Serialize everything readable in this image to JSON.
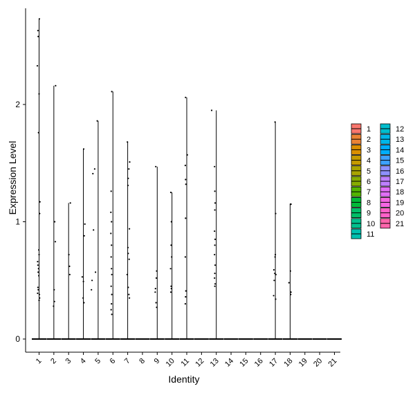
{
  "chart_data": {
    "type": "violin",
    "title": "",
    "xlabel": "Identity",
    "ylabel": "Expression Level",
    "ylim": [
      -0.12,
      2.82
    ],
    "yticks": [
      0,
      1,
      2
    ],
    "legend_position": "right",
    "legend_columns": 2,
    "categories": [
      "1",
      "2",
      "3",
      "4",
      "5",
      "6",
      "7",
      "8",
      "9",
      "10",
      "11",
      "12",
      "13",
      "14",
      "15",
      "16",
      "17",
      "18",
      "19",
      "20",
      "21"
    ],
    "colors": [
      "#F8766D",
      "#EB8335",
      "#DA8F00",
      "#C49A00",
      "#A9A400",
      "#86AC00",
      "#53B400",
      "#00BA38",
      "#00BE67",
      "#00C08D",
      "#00C0AF",
      "#00BDCD",
      "#00B7E8",
      "#00AEFA",
      "#3DA1FF",
      "#8F91FF",
      "#BE80FF",
      "#E06FF6",
      "#F566E3",
      "#FF61C9",
      "#FF65AC"
    ],
    "max_values": [
      2.73,
      2.16,
      1.16,
      1.62,
      1.86,
      2.11,
      1.68,
      0.0,
      1.47,
      1.25,
      2.06,
      0.0,
      1.95,
      0.0,
      0.0,
      0.0,
      1.85,
      1.15,
      0.0,
      0.0,
      0.0
    ],
    "nonzero_points": [
      [
        [
          0.72,
          2.73
        ],
        [
          0.62,
          2.63
        ],
        [
          0.64,
          2.58
        ],
        [
          0.58,
          2.33
        ],
        [
          0.7,
          2.09
        ],
        [
          0.66,
          1.76
        ],
        [
          0.76,
          1.17
        ],
        [
          0.74,
          1.07
        ],
        [
          0.68,
          0.76
        ],
        [
          0.7,
          0.72
        ],
        [
          0.6,
          0.66
        ],
        [
          0.62,
          0.63
        ],
        [
          0.66,
          0.6
        ],
        [
          0.64,
          0.57
        ],
        [
          0.68,
          0.54
        ],
        [
          0.62,
          0.44
        ],
        [
          0.64,
          0.42
        ],
        [
          0.72,
          0.38
        ],
        [
          0.74,
          0.35
        ],
        [
          0.6,
          0.39
        ],
        [
          0.7,
          0.33
        ]
      ],
      [
        [
          0.82,
          2.16
        ],
        [
          0.76,
          1.0
        ],
        [
          0.8,
          0.83
        ],
        [
          0.72,
          0.42
        ],
        [
          0.74,
          0.32
        ],
        [
          0.68,
          0.28
        ]
      ],
      [
        [
          0.82,
          1.16
        ],
        [
          0.72,
          0.72
        ],
        [
          0.76,
          0.62
        ],
        [
          0.78,
          0.55
        ]
      ],
      [
        [
          0.72,
          1.62
        ],
        [
          0.8,
          0.98
        ],
        [
          0.76,
          0.88
        ],
        [
          0.62,
          0.53
        ],
        [
          0.7,
          0.49
        ],
        [
          0.68,
          0.35
        ],
        [
          0.74,
          0.31
        ]
      ],
      [
        [
          0.64,
          1.86
        ],
        [
          0.46,
          1.45
        ],
        [
          0.34,
          1.41
        ],
        [
          0.38,
          0.93
        ],
        [
          0.52,
          0.57
        ],
        [
          0.28,
          0.5
        ],
        [
          0.24,
          0.42
        ]
      ],
      [
        [
          0.62,
          2.11
        ],
        [
          0.58,
          1.26
        ],
        [
          0.56,
          1.08
        ],
        [
          0.6,
          1.0
        ],
        [
          0.56,
          0.9
        ],
        [
          0.6,
          0.8
        ],
        [
          0.58,
          0.7
        ],
        [
          0.6,
          0.6
        ],
        [
          0.62,
          0.55
        ],
        [
          0.58,
          0.45
        ],
        [
          0.62,
          0.38
        ],
        [
          0.6,
          0.3
        ],
        [
          0.58,
          0.25
        ],
        [
          0.62,
          0.21
        ]
      ],
      [
        [
          0.68,
          1.68
        ],
        [
          0.84,
          1.51
        ],
        [
          0.78,
          1.45
        ],
        [
          0.74,
          1.37
        ],
        [
          0.72,
          1.31
        ],
        [
          0.82,
          0.94
        ],
        [
          0.72,
          0.78
        ],
        [
          0.74,
          0.73
        ],
        [
          0.8,
          0.68
        ],
        [
          0.66,
          0.55
        ],
        [
          0.74,
          0.44
        ],
        [
          0.78,
          0.38
        ],
        [
          0.82,
          0.35
        ]
      ],
      [],
      [
        [
          0.6,
          1.47
        ],
        [
          0.66,
          0.58
        ],
        [
          0.64,
          0.52
        ],
        [
          0.58,
          0.43
        ],
        [
          0.56,
          0.4
        ],
        [
          0.62,
          0.31
        ],
        [
          0.66,
          0.27
        ]
      ],
      [
        [
          0.62,
          1.25
        ],
        [
          0.66,
          1.0
        ],
        [
          0.64,
          0.8
        ],
        [
          0.68,
          0.7
        ],
        [
          0.6,
          0.6
        ],
        [
          0.64,
          0.45
        ],
        [
          0.66,
          0.43
        ],
        [
          0.62,
          0.4
        ]
      ],
      [
        [
          0.62,
          2.06
        ],
        [
          0.74,
          1.57
        ],
        [
          0.6,
          1.48
        ],
        [
          0.62,
          1.36
        ],
        [
          0.64,
          1.32
        ],
        [
          0.62,
          1.03
        ],
        [
          0.6,
          0.7
        ],
        [
          0.64,
          0.41
        ],
        [
          0.62,
          0.36
        ],
        [
          0.6,
          0.3
        ]
      ],
      [],
      [
        [
          0.38,
          1.95
        ],
        [
          0.58,
          1.47
        ],
        [
          0.6,
          1.26
        ],
        [
          0.62,
          1.16
        ],
        [
          0.6,
          1.1
        ],
        [
          0.58,
          0.92
        ],
        [
          0.62,
          0.85
        ],
        [
          0.6,
          0.8
        ],
        [
          0.58,
          0.72
        ],
        [
          0.62,
          0.63
        ],
        [
          0.6,
          0.56
        ],
        [
          0.58,
          0.52
        ],
        [
          0.62,
          0.47
        ],
        [
          0.6,
          0.45
        ]
      ],
      [],
      [],
      [],
      [
        [
          0.68,
          1.85
        ],
        [
          0.72,
          1.07
        ],
        [
          0.7,
          0.72
        ],
        [
          0.68,
          0.7
        ],
        [
          0.6,
          0.59
        ],
        [
          0.66,
          0.56
        ],
        [
          0.74,
          0.55
        ],
        [
          0.62,
          0.5
        ],
        [
          0.58,
          0.37
        ],
        [
          0.72,
          0.34
        ]
      ],
      [
        [
          0.72,
          1.15
        ],
        [
          0.76,
          1.15
        ],
        [
          0.72,
          0.58
        ],
        [
          0.62,
          0.48
        ],
        [
          0.76,
          0.4
        ],
        [
          0.74,
          0.38
        ]
      ],
      [],
      [],
      []
    ]
  }
}
